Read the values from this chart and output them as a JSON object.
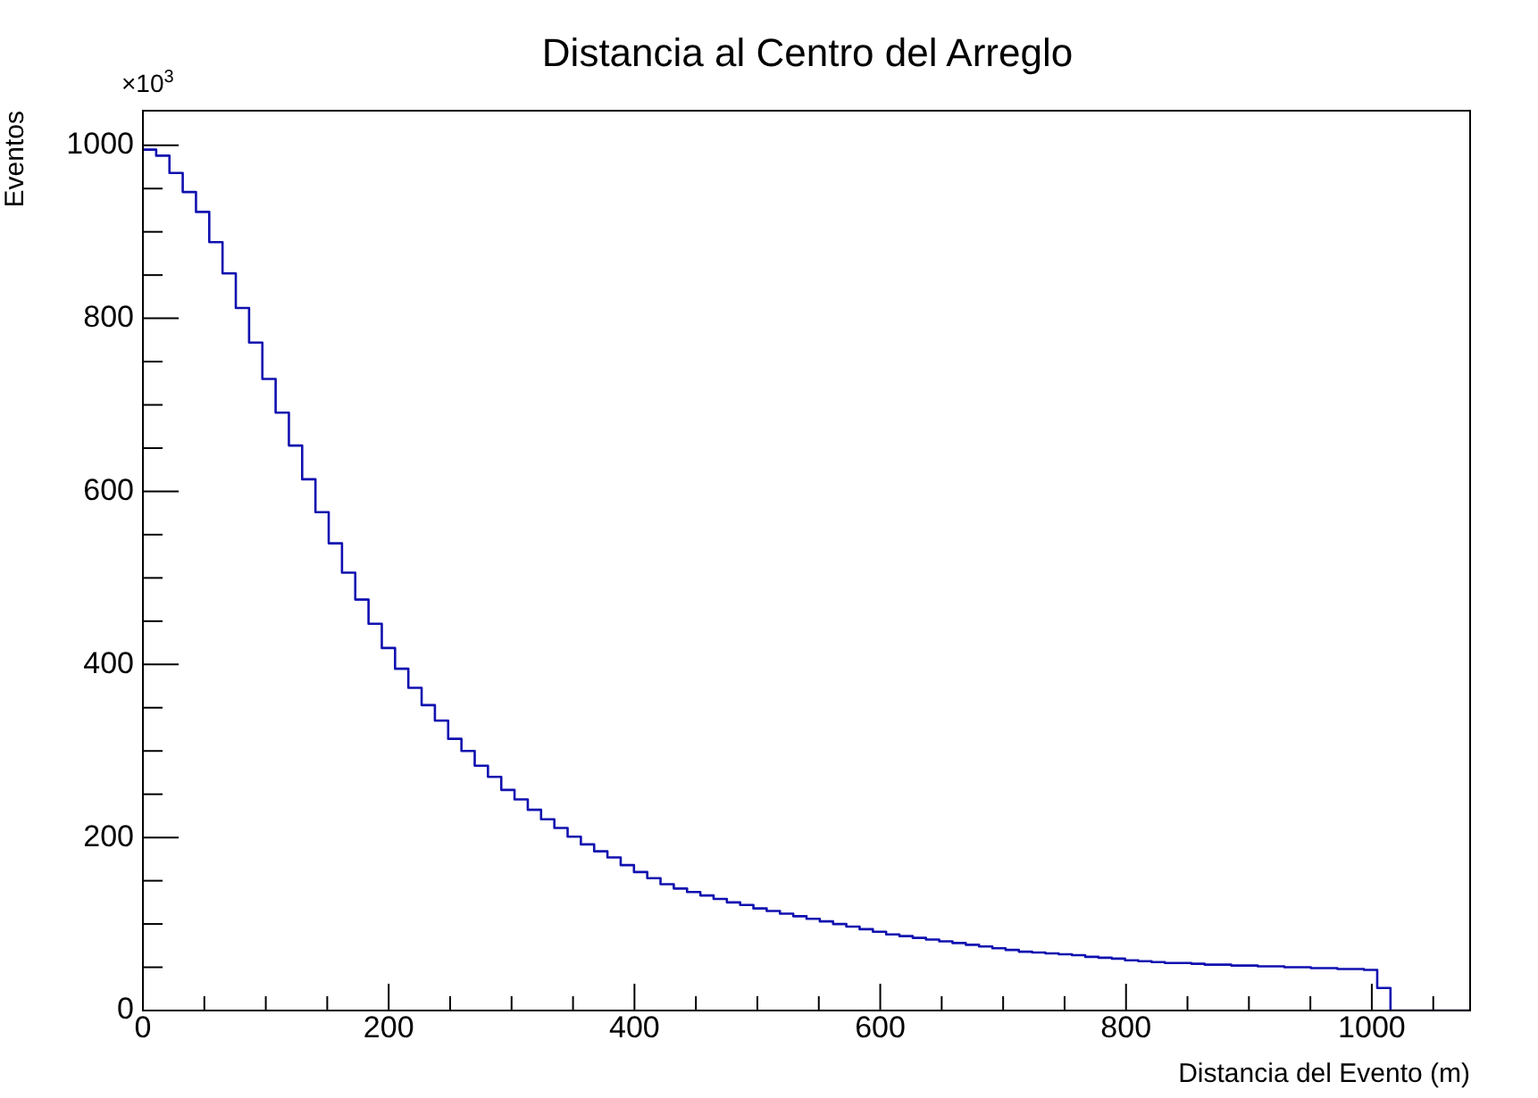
{
  "chart_data": {
    "type": "histogram",
    "title": "Distancia al Centro del Arreglo",
    "xlabel": "Distancia del Evento (m)",
    "ylabel": "Eventos",
    "annotations": [
      "×10$^{3}$"
    ],
    "color": "#1010b0",
    "bins": [
      0,
      10.8,
      21.6,
      32.4,
      43.2,
      54,
      64.8,
      75.6,
      86.4,
      97.2,
      108,
      118.8,
      129.6,
      140.4,
      151.2,
      162,
      172.8,
      183.6,
      194.4,
      205.2,
      216,
      226.8,
      237.6,
      248.4,
      259.2,
      270,
      280.8,
      291.6,
      302.4,
      313.2,
      324,
      334.8,
      345.6,
      356.4,
      367.2,
      378,
      388.8,
      399.6,
      410.4,
      421.2,
      432,
      442.8,
      453.6,
      464.4,
      475.2,
      486,
      496.8,
      507.6,
      518.4,
      529.2,
      540,
      550.8,
      561.6,
      572.4,
      583.2,
      594,
      604.8,
      615.6,
      626.4,
      637.2,
      648,
      658.8,
      669.6,
      680.4,
      691.2,
      702,
      712.8,
      723.6,
      734.4,
      745.2,
      756,
      766.8,
      777.6,
      788.4,
      799.2,
      810,
      820.8,
      831.6,
      842.4,
      853.2,
      864,
      874.8,
      885.6,
      896.4,
      907.2,
      918,
      928.8,
      939.6,
      950.4,
      961.2,
      972,
      982.8,
      993.6,
      1004.4,
      1015.2,
      1026,
      1036.8,
      1047.6,
      1058.4,
      1069.2,
      1080
    ],
    "values": [
      995,
      988,
      968,
      946,
      923,
      888,
      852,
      812,
      772,
      730,
      691,
      653,
      614,
      576,
      540,
      506,
      475,
      447,
      419,
      395,
      373,
      353,
      335,
      314,
      300,
      283,
      270,
      255,
      244,
      232,
      221,
      211,
      201,
      192,
      184,
      177,
      168,
      160,
      153,
      146,
      141,
      137,
      133,
      129,
      125,
      122,
      118,
      115,
      112,
      109,
      106,
      103,
      100,
      97,
      94,
      91,
      88,
      86,
      84,
      82,
      80,
      78,
      76,
      74,
      72,
      70,
      68,
      67,
      66,
      65,
      64,
      62,
      61,
      60,
      58,
      57,
      56,
      55,
      55,
      54,
      53,
      53,
      52,
      52,
      51,
      51,
      50,
      50,
      49,
      49,
      48,
      48,
      47,
      26,
      0,
      0,
      0,
      0,
      0,
      0
    ],
    "xlim": [
      0,
      1080
    ],
    "ylim": [
      0,
      1040
    ],
    "xticks": [
      0,
      {
        "value": 50,
        "label": null
      },
      {
        "value": 100,
        "label": null
      },
      {
        "value": 150,
        "label": null
      },
      200,
      {
        "value": 250,
        "label": null
      },
      {
        "value": 300,
        "label": null
      },
      {
        "value": 350,
        "label": null
      },
      400,
      {
        "value": 450,
        "label": null
      },
      {
        "value": 500,
        "label": null
      },
      {
        "value": 550,
        "label": null
      },
      600,
      {
        "value": 650,
        "label": null
      },
      {
        "value": 700,
        "label": null
      },
      {
        "value": 750,
        "label": null
      },
      800,
      {
        "value": 850,
        "label": null
      },
      {
        "value": 900,
        "label": null
      },
      {
        "value": 950,
        "label": null
      },
      1000,
      {
        "value": 1050,
        "label": null
      }
    ],
    "yticks": [
      0,
      {
        "value": 50,
        "label": null
      },
      {
        "value": 100,
        "label": null
      },
      {
        "value": 150,
        "label": null
      },
      200,
      {
        "value": 250,
        "label": null
      },
      {
        "value": 300,
        "label": null
      },
      {
        "value": 350,
        "label": null
      },
      400,
      {
        "value": 450,
        "label": null
      },
      {
        "value": 500,
        "label": null
      },
      {
        "value": 550,
        "label": null
      },
      600,
      {
        "value": 650,
        "label": null
      },
      {
        "value": 700,
        "label": null
      },
      {
        "value": 750,
        "label": null
      },
      800,
      {
        "value": 850,
        "label": null
      },
      {
        "value": 900,
        "label": null
      },
      {
        "value": 950,
        "label": null
      },
      1000
    ],
    "grid": false,
    "legend": false
  }
}
